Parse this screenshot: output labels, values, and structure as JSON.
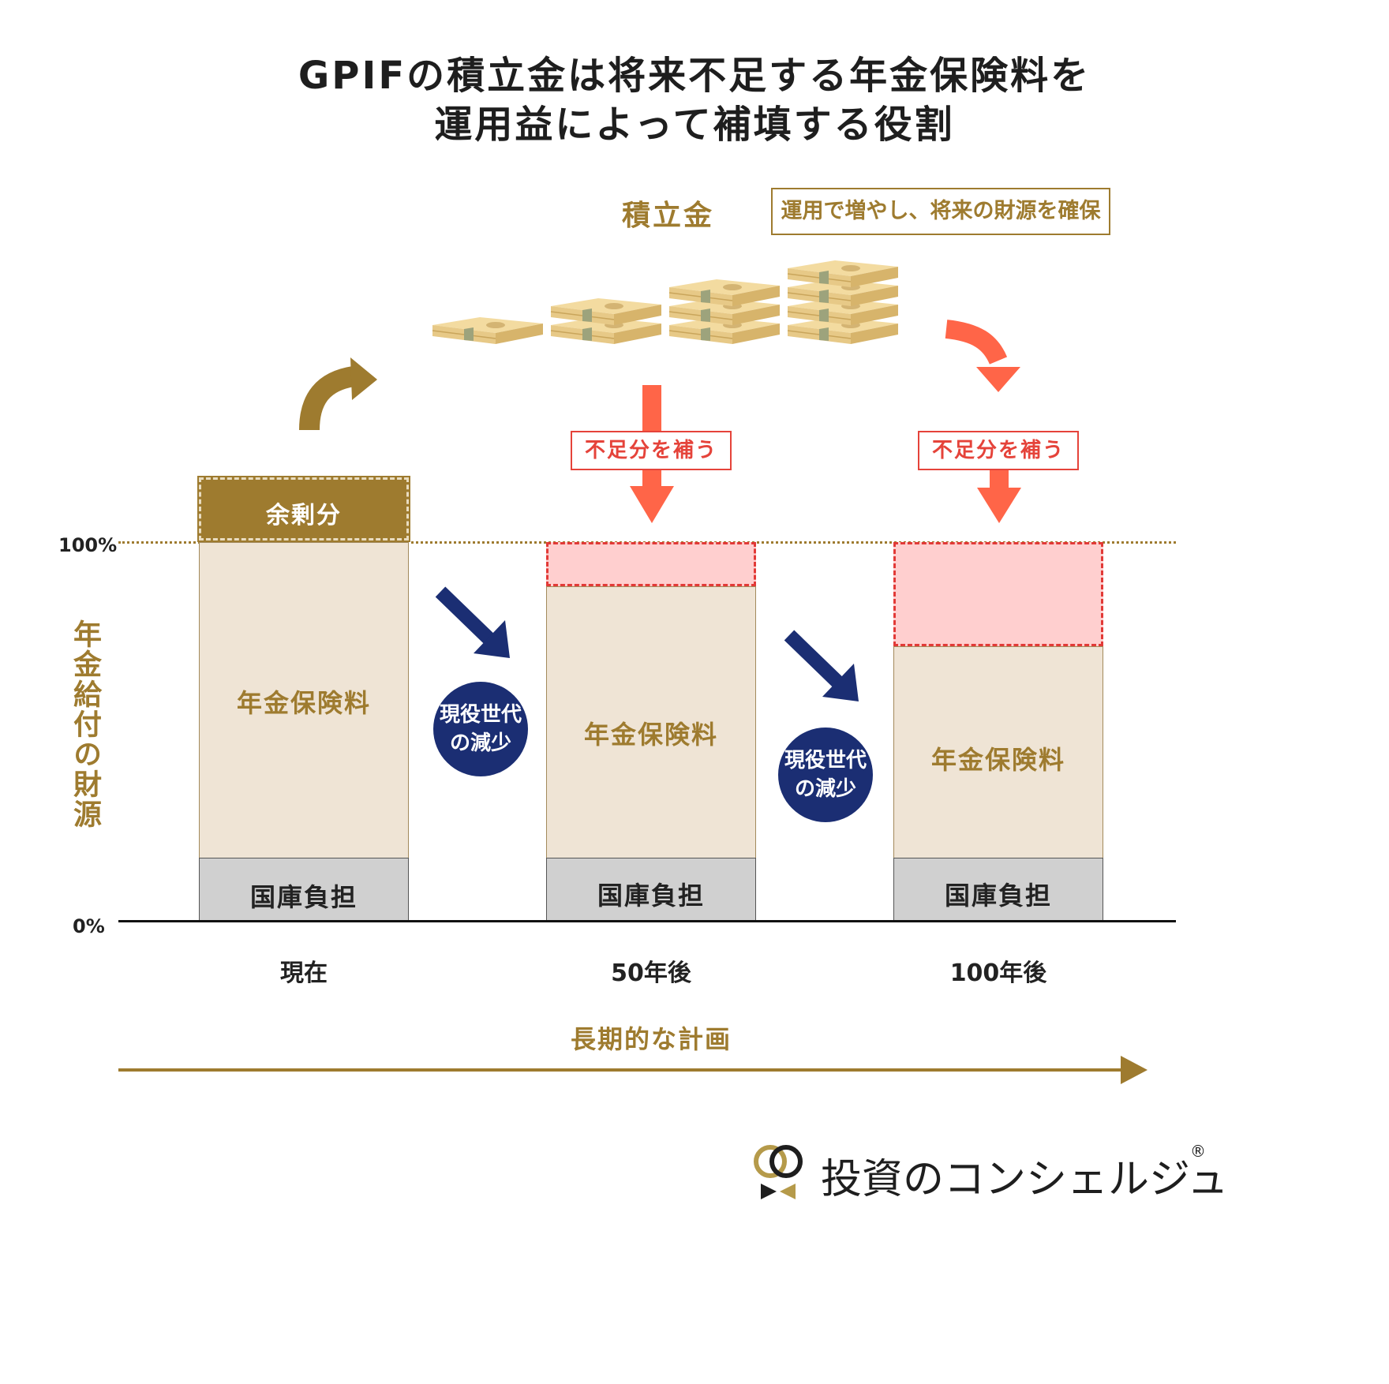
{
  "title": {
    "line1": "GPIFの積立金は将来不足する年金保険料を",
    "line2": "運用益によって補填する役割"
  },
  "reserve": {
    "label": "積立金",
    "note": "運用で増やし、将来の財源を確保",
    "icon": "money-stack-icon"
  },
  "shortfall_label": "不足分を補う",
  "y_axis": {
    "label": "年金給付の財源",
    "tick_100": "100%",
    "tick_0": "0%"
  },
  "bars": [
    {
      "category": "現在",
      "surplus_label": "余剰分",
      "premium_label": "年金保険料",
      "tax_label": "国庫負担"
    },
    {
      "category": "50年後",
      "premium_label": "年金保険料",
      "tax_label": "国庫負担"
    },
    {
      "category": "100年後",
      "premium_label": "年金保険料",
      "tax_label": "国庫負担"
    }
  ],
  "decline_label": "現役世代\nの減少",
  "timeline_label": "長期的な計画",
  "brand": {
    "name": "投資のコンシェルジュ",
    "registered": "®"
  },
  "colors": {
    "gold": "#9e7b2f",
    "red": "#e5433a",
    "orange_arrow": "#ff6548",
    "navy": "#1b2e73",
    "premium_fill": "#efe4d5",
    "tax_fill": "#d0d0d0",
    "shortfall_fill": "#ffcfcf"
  },
  "chart_data": {
    "type": "bar",
    "categories": [
      "現在",
      "50年後",
      "100年後"
    ],
    "series": [
      {
        "name": "国庫負担",
        "values": [
          17,
          17,
          17
        ]
      },
      {
        "name": "年金保険料",
        "values": [
          83,
          71,
          56
        ]
      },
      {
        "name": "不足分を補う",
        "values": [
          0,
          12,
          27
        ]
      },
      {
        "name": "余剰分",
        "values": [
          17,
          0,
          0
        ]
      }
    ],
    "ylim": [
      0,
      117
    ]
  }
}
